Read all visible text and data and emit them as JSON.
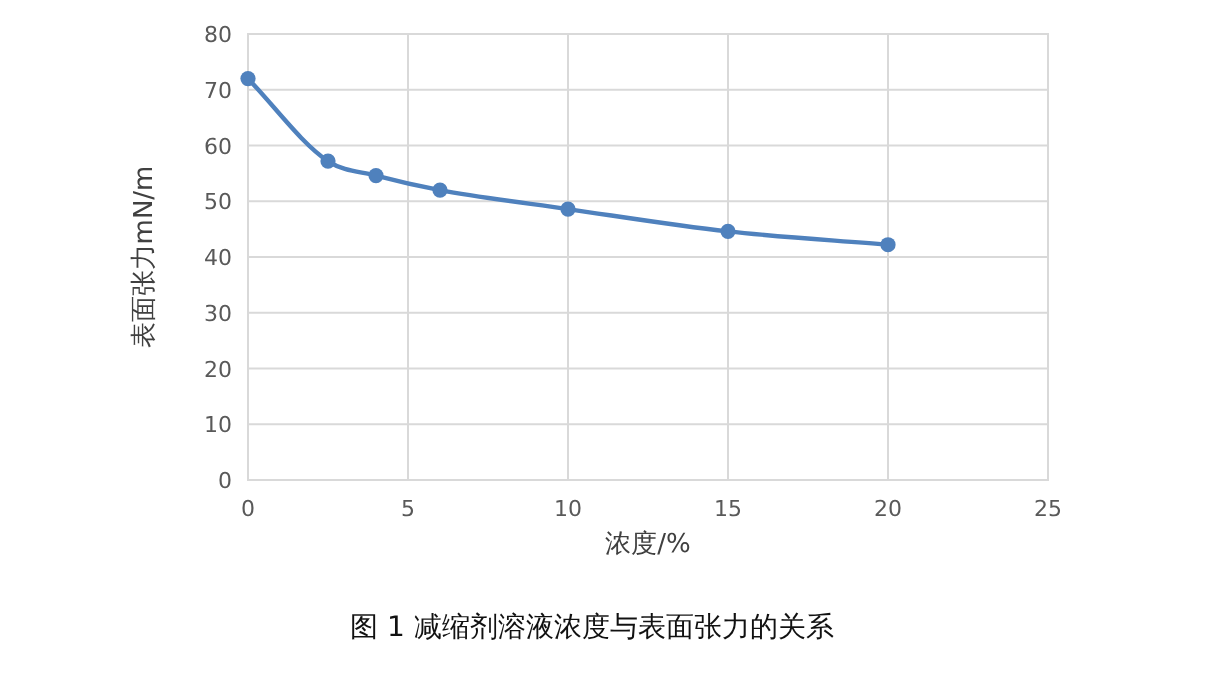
{
  "chart_data": {
    "type": "line",
    "title": "图 1  减缩剂溶液浓度与表面张力的关系",
    "xlabel": "浓度/%",
    "ylabel": "表面张力mN/m",
    "x": [
      0,
      2.5,
      4,
      6,
      10,
      15,
      20
    ],
    "series": [
      {
        "color": "#4f81bd",
        "values": [
          72,
          57.2,
          54.6,
          52,
          48.6,
          44.6,
          42.2
        ]
      }
    ],
    "xlim": [
      0,
      25
    ],
    "xticks": [
      0,
      5,
      10,
      15,
      20,
      25
    ],
    "ylim": [
      0,
      80
    ],
    "yticks": [
      0,
      10,
      20,
      30,
      40,
      50,
      60,
      70,
      80
    ],
    "grid": true,
    "marker": "circle",
    "line_style": "solid"
  }
}
